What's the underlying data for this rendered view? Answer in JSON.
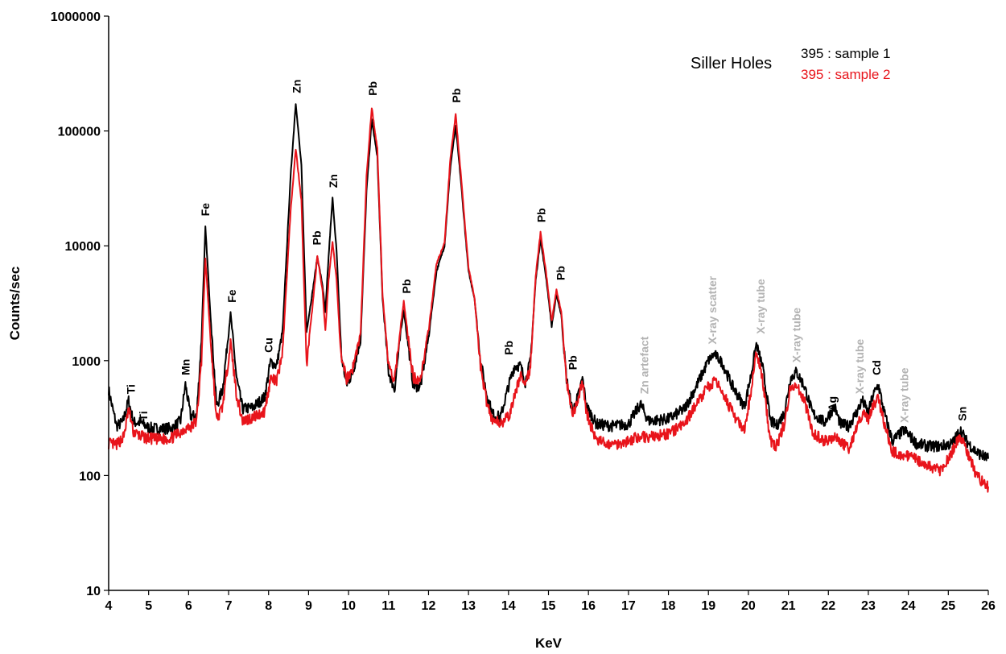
{
  "chart_data": {
    "type": "line",
    "title": "",
    "xlabel": "KeV",
    "ylabel": "Counts/sec",
    "xlim": [
      4,
      26
    ],
    "ylim": [
      10,
      1000000
    ],
    "yscale": "log",
    "grid": false,
    "legend_placement": "top-right",
    "legend_title": "Siller Holes",
    "x_ticks": [
      "4",
      "5",
      "6",
      "7",
      "8",
      "9",
      "10",
      "11",
      "12",
      "13",
      "14",
      "15",
      "16",
      "17",
      "18",
      "19",
      "20",
      "21",
      "22",
      "23",
      "24",
      "25",
      "26"
    ],
    "y_ticks": [
      "10",
      "100",
      "1000",
      "10000",
      "100000",
      "1000000"
    ],
    "series": [
      {
        "name": "395 : sample 1",
        "color": "#000000",
        "points": [
          [
            4.0,
            560
          ],
          [
            4.1,
            380
          ],
          [
            4.2,
            270
          ],
          [
            4.35,
            290
          ],
          [
            4.5,
            450
          ],
          [
            4.62,
            290
          ],
          [
            4.8,
            290
          ],
          [
            5.0,
            260
          ],
          [
            5.3,
            255
          ],
          [
            5.6,
            260
          ],
          [
            5.8,
            300
          ],
          [
            5.92,
            620
          ],
          [
            6.05,
            330
          ],
          [
            6.2,
            330
          ],
          [
            6.32,
            1500
          ],
          [
            6.42,
            14500
          ],
          [
            6.55,
            2400
          ],
          [
            6.7,
            400
          ],
          [
            6.85,
            560
          ],
          [
            7.05,
            2600
          ],
          [
            7.2,
            700
          ],
          [
            7.35,
            380
          ],
          [
            7.6,
            390
          ],
          [
            7.9,
            480
          ],
          [
            8.05,
            980
          ],
          [
            8.2,
            900
          ],
          [
            8.35,
            1800
          ],
          [
            8.55,
            40000
          ],
          [
            8.68,
            175000
          ],
          [
            8.82,
            50000
          ],
          [
            8.95,
            1800
          ],
          [
            9.1,
            4000
          ],
          [
            9.22,
            8000
          ],
          [
            9.35,
            4500
          ],
          [
            9.42,
            2600
          ],
          [
            9.5,
            8000
          ],
          [
            9.6,
            26000
          ],
          [
            9.7,
            9000
          ],
          [
            9.82,
            1100
          ],
          [
            9.95,
            620
          ],
          [
            10.1,
            780
          ],
          [
            10.3,
            1500
          ],
          [
            10.45,
            30000
          ],
          [
            10.58,
            125000
          ],
          [
            10.72,
            60000
          ],
          [
            10.85,
            3500
          ],
          [
            11.0,
            800
          ],
          [
            11.15,
            560
          ],
          [
            11.25,
            1200
          ],
          [
            11.38,
            2800
          ],
          [
            11.5,
            1300
          ],
          [
            11.62,
            600
          ],
          [
            11.8,
            600
          ],
          [
            12.0,
            1600
          ],
          [
            12.2,
            6000
          ],
          [
            12.4,
            10000
          ],
          [
            12.55,
            50000
          ],
          [
            12.68,
            110000
          ],
          [
            12.8,
            40000
          ],
          [
            13.0,
            6000
          ],
          [
            13.15,
            3500
          ],
          [
            13.3,
            1000
          ],
          [
            13.45,
            520
          ],
          [
            13.6,
            340
          ],
          [
            13.8,
            320
          ],
          [
            14.0,
            600
          ],
          [
            14.15,
            900
          ],
          [
            14.3,
            900
          ],
          [
            14.42,
            650
          ],
          [
            14.55,
            1000
          ],
          [
            14.68,
            5000
          ],
          [
            14.8,
            11500
          ],
          [
            14.95,
            5000
          ],
          [
            15.08,
            2000
          ],
          [
            15.2,
            3800
          ],
          [
            15.32,
            2500
          ],
          [
            15.45,
            700
          ],
          [
            15.6,
            360
          ],
          [
            15.75,
            500
          ],
          [
            15.85,
            700
          ],
          [
            15.95,
            400
          ],
          [
            16.2,
            280
          ],
          [
            16.6,
            270
          ],
          [
            17.0,
            280
          ],
          [
            17.3,
            420
          ],
          [
            17.5,
            300
          ],
          [
            18.0,
            310
          ],
          [
            18.4,
            380
          ],
          [
            18.7,
            600
          ],
          [
            19.0,
            1000
          ],
          [
            19.15,
            1150
          ],
          [
            19.35,
            950
          ],
          [
            19.6,
            600
          ],
          [
            19.9,
            400
          ],
          [
            20.05,
            700
          ],
          [
            20.2,
            1400
          ],
          [
            20.35,
            900
          ],
          [
            20.55,
            300
          ],
          [
            20.7,
            270
          ],
          [
            20.9,
            350
          ],
          [
            21.05,
            700
          ],
          [
            21.2,
            800
          ],
          [
            21.4,
            600
          ],
          [
            21.6,
            350
          ],
          [
            21.9,
            290
          ],
          [
            22.15,
            400
          ],
          [
            22.3,
            280
          ],
          [
            22.5,
            270
          ],
          [
            22.7,
            350
          ],
          [
            22.85,
            450
          ],
          [
            23.0,
            350
          ],
          [
            23.1,
            480
          ],
          [
            23.25,
            620
          ],
          [
            23.4,
            350
          ],
          [
            23.6,
            200
          ],
          [
            23.9,
            250
          ],
          [
            24.2,
            190
          ],
          [
            24.5,
            180
          ],
          [
            24.8,
            180
          ],
          [
            25.1,
            190
          ],
          [
            25.3,
            250
          ],
          [
            25.45,
            200
          ],
          [
            25.7,
            160
          ],
          [
            26.0,
            140
          ]
        ]
      },
      {
        "name": "395 : sample 2",
        "color": "#e8141b",
        "points": [
          [
            4.0,
            190
          ],
          [
            4.2,
            185
          ],
          [
            4.38,
            220
          ],
          [
            4.5,
            380
          ],
          [
            4.62,
            240
          ],
          [
            4.8,
            220
          ],
          [
            5.0,
            210
          ],
          [
            5.3,
            205
          ],
          [
            5.6,
            215
          ],
          [
            5.8,
            240
          ],
          [
            5.92,
            260
          ],
          [
            6.05,
            260
          ],
          [
            6.2,
            300
          ],
          [
            6.32,
            1000
          ],
          [
            6.42,
            7800
          ],
          [
            6.55,
            1500
          ],
          [
            6.7,
            300
          ],
          [
            6.85,
            400
          ],
          [
            7.05,
            1450
          ],
          [
            7.2,
            500
          ],
          [
            7.35,
            300
          ],
          [
            7.6,
            320
          ],
          [
            7.9,
            360
          ],
          [
            8.05,
            700
          ],
          [
            8.2,
            650
          ],
          [
            8.35,
            1200
          ],
          [
            8.55,
            20000
          ],
          [
            8.68,
            70000
          ],
          [
            8.82,
            25000
          ],
          [
            8.95,
            900
          ],
          [
            9.1,
            3000
          ],
          [
            9.22,
            8200
          ],
          [
            9.35,
            4000
          ],
          [
            9.42,
            1800
          ],
          [
            9.5,
            5000
          ],
          [
            9.6,
            11000
          ],
          [
            9.7,
            5000
          ],
          [
            9.82,
            1000
          ],
          [
            9.95,
            700
          ],
          [
            10.1,
            850
          ],
          [
            10.3,
            1700
          ],
          [
            10.45,
            40000
          ],
          [
            10.58,
            160000
          ],
          [
            10.72,
            70000
          ],
          [
            10.85,
            3800
          ],
          [
            11.0,
            900
          ],
          [
            11.15,
            650
          ],
          [
            11.25,
            1400
          ],
          [
            11.38,
            3300
          ],
          [
            11.5,
            1500
          ],
          [
            11.62,
            700
          ],
          [
            11.8,
            700
          ],
          [
            12.0,
            1800
          ],
          [
            12.2,
            7000
          ],
          [
            12.4,
            10500
          ],
          [
            12.55,
            60000
          ],
          [
            12.68,
            140000
          ],
          [
            12.8,
            45000
          ],
          [
            13.0,
            6500
          ],
          [
            13.15,
            3500
          ],
          [
            13.3,
            900
          ],
          [
            13.45,
            450
          ],
          [
            13.6,
            300
          ],
          [
            13.8,
            290
          ],
          [
            14.0,
            320
          ],
          [
            14.15,
            480
          ],
          [
            14.3,
            760
          ],
          [
            14.42,
            580
          ],
          [
            14.55,
            900
          ],
          [
            14.68,
            5500
          ],
          [
            14.8,
            13000
          ],
          [
            14.95,
            5500
          ],
          [
            15.08,
            2200
          ],
          [
            15.2,
            4100
          ],
          [
            15.32,
            2700
          ],
          [
            15.45,
            650
          ],
          [
            15.6,
            330
          ],
          [
            15.75,
            450
          ],
          [
            15.85,
            680
          ],
          [
            15.95,
            350
          ],
          [
            16.2,
            200
          ],
          [
            16.6,
            185
          ],
          [
            17.0,
            200
          ],
          [
            17.3,
            220
          ],
          [
            17.5,
            215
          ],
          [
            18.0,
            230
          ],
          [
            18.4,
            280
          ],
          [
            18.7,
            420
          ],
          [
            19.0,
            600
          ],
          [
            19.15,
            650
          ],
          [
            19.35,
            550
          ],
          [
            19.6,
            350
          ],
          [
            19.9,
            240
          ],
          [
            20.05,
            500
          ],
          [
            20.2,
            1180
          ],
          [
            20.35,
            700
          ],
          [
            20.55,
            200
          ],
          [
            20.7,
            180
          ],
          [
            20.9,
            280
          ],
          [
            21.05,
            580
          ],
          [
            21.2,
            620
          ],
          [
            21.4,
            450
          ],
          [
            21.6,
            240
          ],
          [
            21.9,
            200
          ],
          [
            22.15,
            220
          ],
          [
            22.3,
            200
          ],
          [
            22.5,
            170
          ],
          [
            22.7,
            250
          ],
          [
            22.85,
            350
          ],
          [
            23.0,
            300
          ],
          [
            23.1,
            400
          ],
          [
            23.25,
            470
          ],
          [
            23.4,
            280
          ],
          [
            23.6,
            160
          ],
          [
            23.9,
            150
          ],
          [
            24.2,
            140
          ],
          [
            24.5,
            120
          ],
          [
            24.8,
            110
          ],
          [
            25.1,
            160
          ],
          [
            25.3,
            225
          ],
          [
            25.45,
            170
          ],
          [
            25.7,
            100
          ],
          [
            26.0,
            80
          ]
        ]
      }
    ],
    "peak_labels": [
      {
        "text": "Ti",
        "x": 4.55,
        "y": 480,
        "color": "#000000"
      },
      {
        "text": "Ti",
        "x": 4.87,
        "y": 280,
        "color": "#000000"
      },
      {
        "text": "Mn",
        "x": 5.92,
        "y": 700,
        "color": "#000000"
      },
      {
        "text": "Fe",
        "x": 6.42,
        "y": 17000,
        "color": "#000000"
      },
      {
        "text": "Fe",
        "x": 7.08,
        "y": 3000,
        "color": "#000000"
      },
      {
        "text": "Cu",
        "x": 8.0,
        "y": 1100,
        "color": "#000000"
      },
      {
        "text": "Zn",
        "x": 8.7,
        "y": 200000,
        "color": "#000000"
      },
      {
        "text": "Pb",
        "x": 9.2,
        "y": 9500,
        "color": "#000000"
      },
      {
        "text": "Zn",
        "x": 9.62,
        "y": 30000,
        "color": "#000000"
      },
      {
        "text": "Pb",
        "x": 10.6,
        "y": 190000,
        "color": "#000000"
      },
      {
        "text": "Pb",
        "x": 11.45,
        "y": 3600,
        "color": "#000000"
      },
      {
        "text": "Pb",
        "x": 12.7,
        "y": 165000,
        "color": "#000000"
      },
      {
        "text": "Pb",
        "x": 14.0,
        "y": 1050,
        "color": "#000000"
      },
      {
        "text": "Pb",
        "x": 14.82,
        "y": 15000,
        "color": "#000000"
      },
      {
        "text": "Pb",
        "x": 15.3,
        "y": 4700,
        "color": "#000000"
      },
      {
        "text": "Pb",
        "x": 15.6,
        "y": 780,
        "color": "#000000"
      },
      {
        "text": "Zn artefact",
        "x": 17.4,
        "y": 480,
        "color": "#b3b3b3"
      },
      {
        "text": "X-ray scatter",
        "x": 19.1,
        "y": 1300,
        "color": "#b3b3b3"
      },
      {
        "text": "X-ray tube",
        "x": 20.3,
        "y": 1600,
        "color": "#b3b3b3"
      },
      {
        "text": "X-ray tube",
        "x": 21.2,
        "y": 900,
        "color": "#b3b3b3"
      },
      {
        "text": "Ag",
        "x": 22.1,
        "y": 340,
        "color": "#000000"
      },
      {
        "text": "X-ray tube",
        "x": 22.78,
        "y": 480,
        "color": "#b3b3b3"
      },
      {
        "text": "Cd",
        "x": 23.2,
        "y": 700,
        "color": "#000000"
      },
      {
        "text": "X-ray tube",
        "x": 23.9,
        "y": 270,
        "color": "#b3b3b3"
      },
      {
        "text": "Sn",
        "x": 25.35,
        "y": 280,
        "color": "#000000"
      }
    ]
  }
}
